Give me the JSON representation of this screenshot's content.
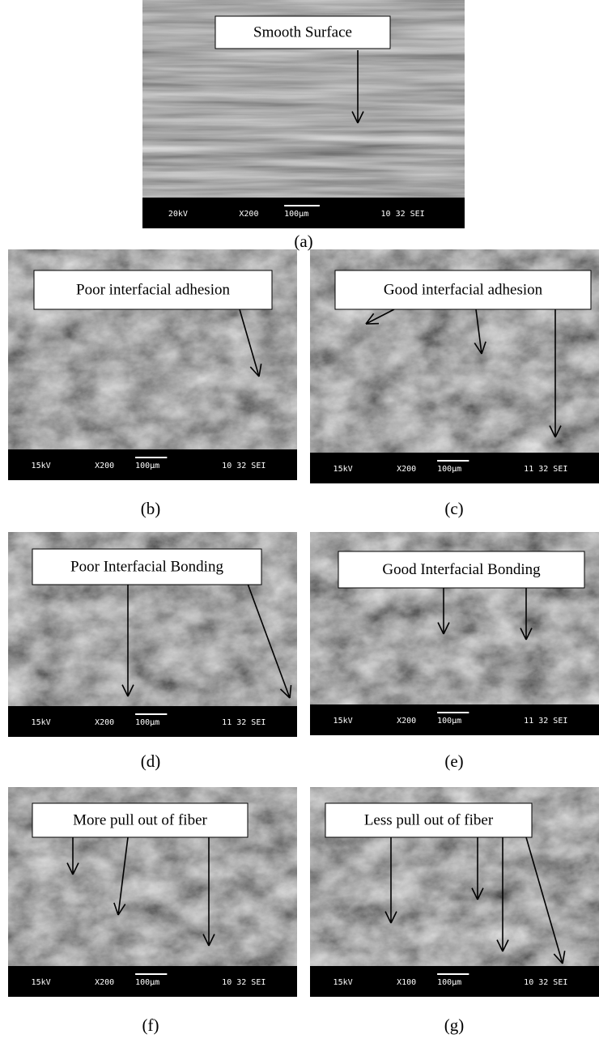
{
  "panels": [
    {
      "label": "Smooth Surface",
      "voltage": "20kV",
      "magnification": "X200",
      "scale": "100µm",
      "code": "10 32 SEI",
      "caption": "(a)"
    },
    {
      "label": "Poor interfacial adhesion",
      "voltage": "15kV",
      "magnification": "X200",
      "scale": "100µm",
      "code": "10 32 SEI",
      "caption": "(b)"
    },
    {
      "label": "Good interfacial adhesion",
      "voltage": "15kV",
      "magnification": "X200",
      "scale": "100µm",
      "code": "11 32 SEI",
      "caption": "(c)"
    },
    {
      "label": "Poor Interfacial Bonding",
      "voltage": "15kV",
      "magnification": "X200",
      "scale": "100µm",
      "code": "11 32 SEI",
      "caption": "(d)"
    },
    {
      "label": "Good Interfacial Bonding",
      "voltage": "15kV",
      "magnification": "X200",
      "scale": "100µm",
      "code": "11 32 SEI",
      "caption": "(e)"
    },
    {
      "label": "More pull out of fiber",
      "voltage": "15kV",
      "magnification": "X200",
      "scale": "100µm",
      "code": "10 32 SEI",
      "caption": "(f)"
    },
    {
      "label": "Less pull out of fiber",
      "voltage": "15kV",
      "magnification": "X100",
      "scale": "100µm",
      "code": "10 32 SEI",
      "caption": "(g)"
    }
  ]
}
